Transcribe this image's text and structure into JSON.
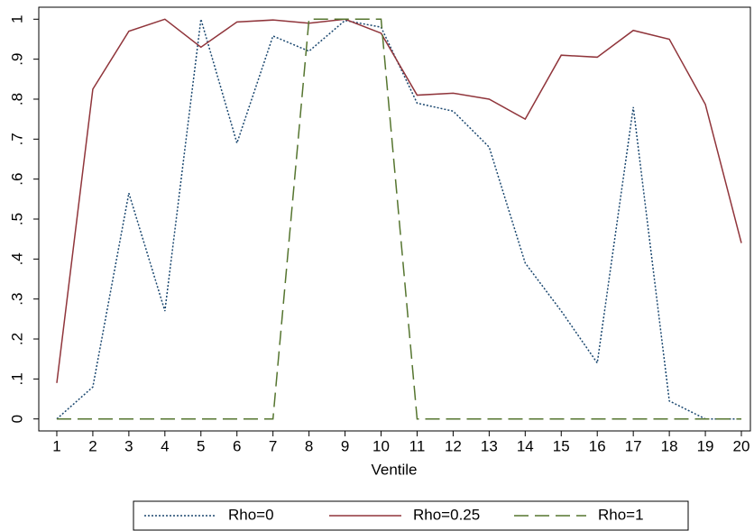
{
  "chart_data": {
    "type": "line",
    "x_label": "Ventile",
    "x": [
      1,
      2,
      3,
      4,
      5,
      6,
      7,
      8,
      9,
      10,
      11,
      12,
      13,
      14,
      15,
      16,
      17,
      18,
      19,
      20
    ],
    "xlim": [
      0.5,
      20.25
    ],
    "xticks": [
      1,
      2,
      3,
      4,
      5,
      6,
      7,
      8,
      9,
      10,
      11,
      12,
      13,
      14,
      15,
      16,
      17,
      18,
      19,
      20
    ],
    "ylim": [
      -0.03,
      1.03
    ],
    "yticks": [
      0,
      {
        "value": 0.1,
        "label": ".1"
      },
      {
        "value": 0.2,
        "label": ".2"
      },
      {
        "value": 0.3,
        "label": ".3"
      },
      {
        "value": 0.4,
        "label": ".4"
      },
      {
        "value": 0.5,
        "label": ".5"
      },
      {
        "value": 0.6,
        "label": ".6"
      },
      {
        "value": 0.7,
        "label": ".7"
      },
      {
        "value": 0.8,
        "label": ".8"
      },
      {
        "value": 0.9,
        "label": ".9"
      },
      1
    ],
    "grid": false,
    "legend": "bottom",
    "series": [
      {
        "name": "Rho=0",
        "color": "#1a476f",
        "dash": "2,2",
        "values": [
          0,
          0.08,
          0.565,
          0.27,
          1.0,
          0.69,
          0.958,
          0.92,
          0.997,
          0.98,
          0.79,
          0.77,
          0.68,
          0.39,
          0.27,
          0.14,
          0.78,
          0.045,
          0,
          0
        ]
      },
      {
        "name": "Rho=0.25",
        "color": "#90353b",
        "dash": "none",
        "values": [
          0.09,
          0.825,
          0.97,
          1.0,
          0.93,
          0.993,
          0.998,
          0.99,
          1.0,
          0.965,
          0.81,
          0.815,
          0.8,
          0.75,
          0.91,
          0.905,
          0.972,
          0.95,
          0.787,
          0.44
        ]
      },
      {
        "name": "Rho=1",
        "color": "#55752f",
        "dash": "16,7",
        "values": [
          0,
          0,
          0,
          0,
          0,
          0,
          0,
          1,
          1,
          1,
          0,
          0,
          0,
          0,
          0,
          0,
          0,
          0,
          0,
          0
        ]
      }
    ]
  }
}
